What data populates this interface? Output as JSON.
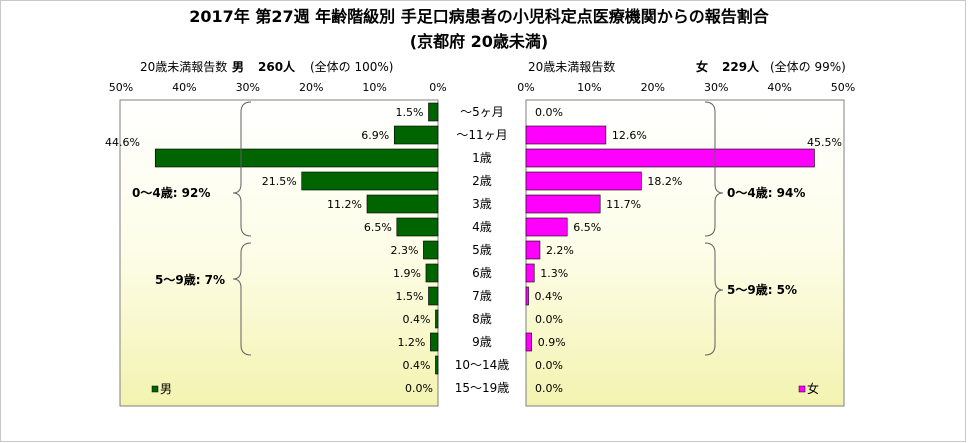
{
  "chart_data": {
    "type": "bar",
    "orientation": "horizontal-pyramid",
    "title": "2017年 第27週 年齢階級別 手足口病患者の小児科定点医療機関からの報告割合",
    "subtitle": "(京都府 20歳未満)",
    "categories": [
      "～5ヶ月",
      "～11ヶ月",
      "1歳",
      "2歳",
      "3歳",
      "4歳",
      "5歳",
      "6歳",
      "7歳",
      "8歳",
      "9歳",
      "10～14歳",
      "15～19歳"
    ],
    "ticks": [
      "0%",
      "10%",
      "20%",
      "30%",
      "40%",
      "50%"
    ],
    "xlim": [
      0,
      50
    ],
    "grid": false,
    "series": [
      {
        "name": "男",
        "color": "#006400",
        "header_label": "20歳未満報告数",
        "header_sex": "男",
        "header_count": "260人",
        "header_total": "(全体の 100%)",
        "values": [
          1.5,
          6.9,
          44.6,
          21.5,
          11.2,
          6.5,
          2.3,
          1.9,
          1.5,
          0.4,
          1.2,
          0.4,
          0.0
        ],
        "value_labels": [
          "1.5%",
          "6.9%",
          "44.6%",
          "21.5%",
          "11.2%",
          "6.5%",
          "2.3%",
          "1.9%",
          "1.5%",
          "0.4%",
          "1.2%",
          "0.4%",
          "0.0%"
        ],
        "group_labels": [
          "0～4歳: 92%",
          "5～9歳: 7%"
        ],
        "legend": "男"
      },
      {
        "name": "女",
        "color": "#ff00ff",
        "header_label": "20歳未満報告数",
        "header_sex": "女",
        "header_count": "229人",
        "header_total": "(全体の  99%)",
        "values": [
          0.0,
          12.6,
          45.5,
          18.2,
          11.7,
          6.5,
          2.2,
          1.3,
          0.4,
          0.0,
          0.9,
          0.0,
          0.0
        ],
        "value_labels": [
          "0.0%",
          "12.6%",
          "45.5%",
          "18.2%",
          "11.7%",
          "6.5%",
          "2.2%",
          "1.3%",
          "0.4%",
          "0.0%",
          "0.9%",
          "0.0%",
          "0.0%"
        ],
        "group_labels": [
          "0～4歳: 94%",
          "5～9歳: 5%"
        ],
        "legend": "女"
      }
    ]
  }
}
